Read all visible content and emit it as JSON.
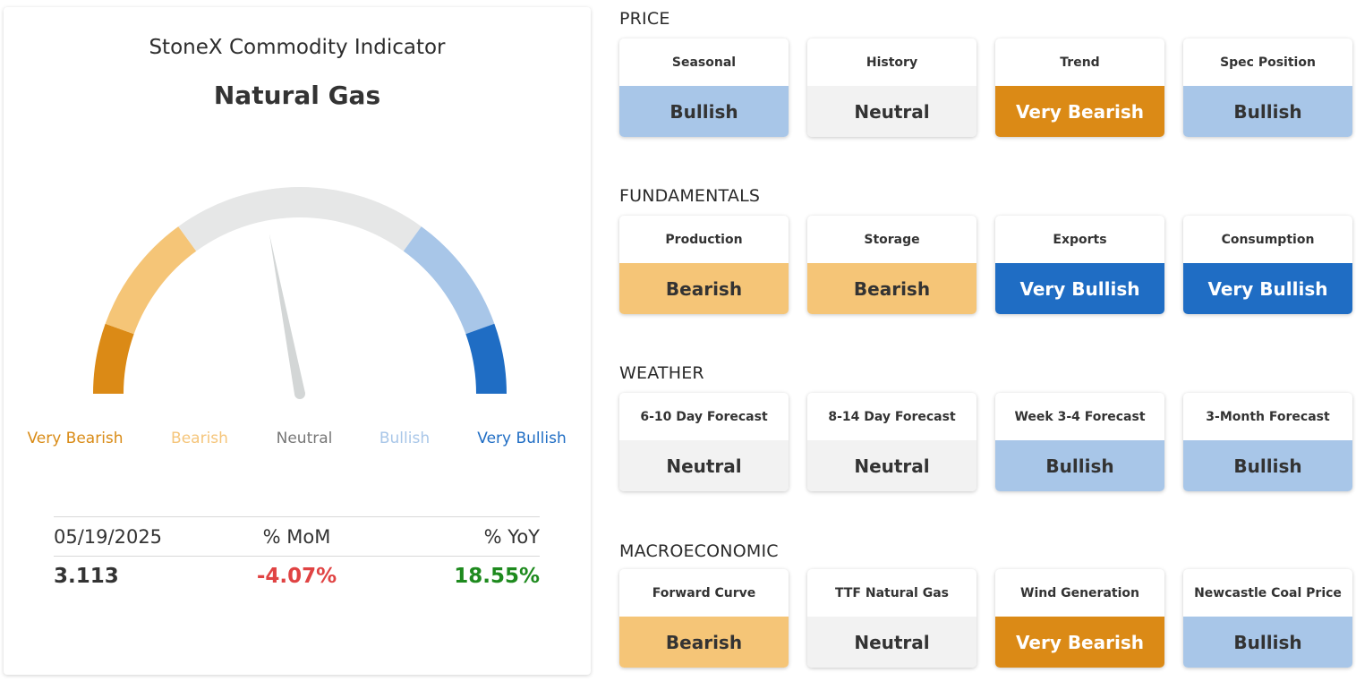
{
  "indicator": {
    "title": "StoneX Commodity Indicator",
    "commodity": "Natural Gas"
  },
  "gauge": {
    "reading": "Neutral",
    "needle_level": 0.44,
    "labels": [
      {
        "text": "Very Bearish",
        "color": "#d98b16"
      },
      {
        "text": "Bearish",
        "color": "#f5c57a"
      },
      {
        "text": "Neutral",
        "color": "#777777"
      },
      {
        "text": "Bullish",
        "color": "#a8c6e8"
      },
      {
        "text": "Very Bullish",
        "color": "#1f6dc4"
      }
    ]
  },
  "stats": {
    "date": "05/19/2025",
    "mom_label": "% MoM",
    "yoy_label": "% YoY",
    "price": "3.113",
    "mom": "-4.07%",
    "yoy": "18.55%"
  },
  "rating_colors": {
    "Very Bearish": {
      "bg": "#db8a16",
      "fg": "#ffffff"
    },
    "Bearish": {
      "bg": "#f5c577",
      "fg": "#333333"
    },
    "Neutral": {
      "bg": "#f2f2f2",
      "fg": "#333333"
    },
    "Bullish": {
      "bg": "#a8c6e8",
      "fg": "#333333"
    },
    "Very Bullish": {
      "bg": "#1f6dc4",
      "fg": "#ffffff"
    }
  },
  "sections": [
    {
      "title": "PRICE",
      "items": [
        {
          "label": "Seasonal",
          "value": "Bullish"
        },
        {
          "label": "History",
          "value": "Neutral"
        },
        {
          "label": "Trend",
          "value": "Very Bearish"
        },
        {
          "label": "Spec Position",
          "value": "Bullish"
        }
      ]
    },
    {
      "title": "FUNDAMENTALS",
      "items": [
        {
          "label": "Production",
          "value": "Bearish"
        },
        {
          "label": "Storage",
          "value": "Bearish"
        },
        {
          "label": "Exports",
          "value": "Very Bullish"
        },
        {
          "label": "Consumption",
          "value": "Very Bullish"
        }
      ]
    },
    {
      "title": "WEATHER",
      "items": [
        {
          "label": "6-10 Day Forecast",
          "value": "Neutral"
        },
        {
          "label": "8-14 Day Forecast",
          "value": "Neutral"
        },
        {
          "label": "Week 3-4 Forecast",
          "value": "Bullish"
        },
        {
          "label": "3-Month Forecast",
          "value": "Bullish"
        }
      ]
    },
    {
      "title": "MACROECONOMIC",
      "items": [
        {
          "label": "Forward Curve",
          "value": "Bearish"
        },
        {
          "label": "TTF Natural Gas",
          "value": "Neutral"
        },
        {
          "label": "Wind Generation",
          "value": "Very Bearish"
        },
        {
          "label": "Newcastle Coal Price",
          "value": "Bullish"
        }
      ]
    }
  ]
}
